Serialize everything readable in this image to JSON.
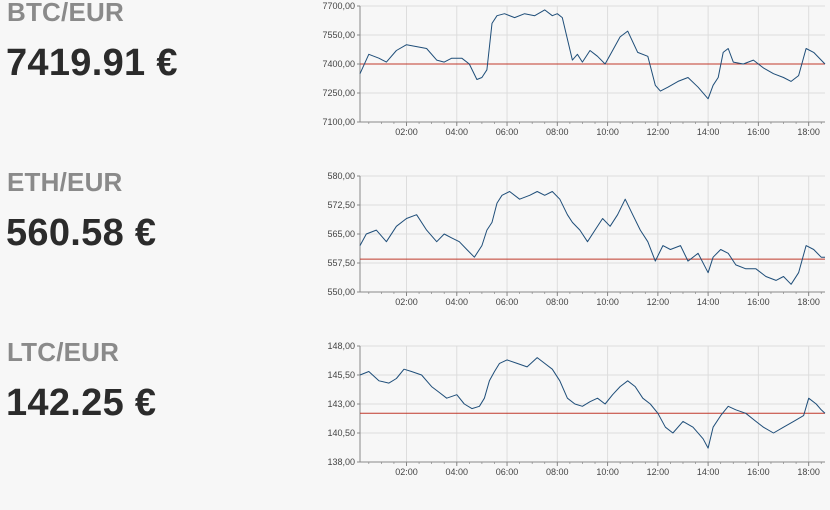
{
  "pairs": [
    {
      "pair": "BTC/EUR",
      "price": "7419.91 €"
    },
    {
      "pair": "ETH/EUR",
      "price": "560.58 €"
    },
    {
      "pair": "LTC/EUR",
      "price": "142.25 €"
    }
  ],
  "colors": {
    "line": "#1f4e79",
    "reference": "#c0392b",
    "grid": "#dddddd",
    "axis": "#888888"
  },
  "chart_data": [
    {
      "type": "line",
      "title": "BTC/EUR",
      "x_ticks": [
        "02:00",
        "04:00",
        "06:00",
        "08:00",
        "10:00",
        "12:00",
        "14:00",
        "16:00",
        "18:00"
      ],
      "y_ticks": [
        "7100,00",
        "7250,00",
        "7400,00",
        "7550,00",
        "7700,00"
      ],
      "ylim": [
        7100,
        7700
      ],
      "xlim_hours": [
        0.15,
        18.65
      ],
      "reference_line": 7400,
      "grid": true,
      "series": [
        {
          "x": [
            0.15,
            0.5,
            0.9,
            1.2,
            1.6,
            2.0,
            2.4,
            2.8,
            3.2,
            3.5,
            3.8,
            4.2,
            4.5,
            4.8,
            5.0,
            5.2,
            5.4,
            5.6,
            5.9,
            6.3,
            6.7,
            7.1,
            7.5,
            7.8,
            8.0,
            8.2,
            8.6,
            8.8,
            9.0,
            9.3,
            9.6,
            9.9,
            10.2,
            10.5,
            10.8,
            11.2,
            11.6,
            11.9,
            12.1,
            12.4,
            12.8,
            13.2,
            13.6,
            14.0,
            14.2,
            14.4,
            14.6,
            14.8,
            15.0,
            15.4,
            15.8,
            16.2,
            16.6,
            17.0,
            17.3,
            17.6,
            17.9,
            18.2,
            18.5,
            18.65
          ],
          "y": [
            7350,
            7450,
            7430,
            7410,
            7470,
            7500,
            7490,
            7480,
            7420,
            7410,
            7430,
            7430,
            7400,
            7320,
            7330,
            7370,
            7610,
            7650,
            7660,
            7640,
            7660,
            7650,
            7680,
            7650,
            7660,
            7640,
            7420,
            7450,
            7410,
            7470,
            7440,
            7400,
            7470,
            7540,
            7570,
            7460,
            7440,
            7290,
            7260,
            7280,
            7310,
            7330,
            7280,
            7220,
            7290,
            7330,
            7460,
            7480,
            7410,
            7400,
            7420,
            7380,
            7350,
            7330,
            7310,
            7340,
            7480,
            7460,
            7420,
            7400
          ]
        }
      ]
    },
    {
      "type": "line",
      "title": "ETH/EUR",
      "x_ticks": [
        "02:00",
        "04:00",
        "06:00",
        "08:00",
        "10:00",
        "12:00",
        "14:00",
        "16:00",
        "18:00"
      ],
      "y_ticks": [
        "550,00",
        "557,50",
        "565,00",
        "572,50",
        "580,00"
      ],
      "ylim": [
        550,
        580
      ],
      "xlim_hours": [
        0.15,
        18.65
      ],
      "reference_line": 558.5,
      "grid": true,
      "series": [
        {
          "x": [
            0.15,
            0.4,
            0.8,
            1.2,
            1.6,
            2.0,
            2.4,
            2.8,
            3.2,
            3.5,
            3.8,
            4.1,
            4.4,
            4.7,
            5.0,
            5.2,
            5.4,
            5.6,
            5.8,
            6.1,
            6.5,
            6.9,
            7.2,
            7.5,
            7.8,
            8.1,
            8.4,
            8.6,
            8.9,
            9.2,
            9.5,
            9.8,
            10.1,
            10.4,
            10.7,
            11.0,
            11.3,
            11.6,
            11.9,
            12.2,
            12.5,
            12.9,
            13.2,
            13.6,
            14.0,
            14.2,
            14.5,
            14.8,
            15.1,
            15.5,
            15.9,
            16.3,
            16.7,
            17.0,
            17.3,
            17.6,
            17.9,
            18.2,
            18.5,
            18.65
          ],
          "y": [
            562,
            565,
            566,
            563,
            567,
            569,
            570,
            566,
            563,
            565,
            564,
            563,
            561,
            559,
            562,
            566,
            568,
            573,
            575,
            576,
            574,
            575,
            576,
            575,
            576,
            574,
            570,
            568,
            566,
            563,
            566,
            569,
            567,
            570,
            574,
            570,
            566,
            563,
            558,
            562,
            561,
            562,
            558,
            560,
            555,
            559,
            561,
            560,
            557,
            556,
            556,
            554,
            553,
            554,
            552,
            555,
            562,
            561,
            559,
            559
          ]
        }
      ]
    },
    {
      "type": "line",
      "title": "LTC/EUR",
      "x_ticks": [
        "02:00",
        "04:00",
        "06:00",
        "08:00",
        "10:00",
        "12:00",
        "14:00",
        "16:00",
        "18:00"
      ],
      "y_ticks": [
        "138,00",
        "140,50",
        "143,00",
        "145,50",
        "148,00"
      ],
      "ylim": [
        138,
        148
      ],
      "xlim_hours": [
        0.15,
        18.65
      ],
      "reference_line": 142.2,
      "grid": true,
      "series": [
        {
          "x": [
            0.15,
            0.5,
            0.9,
            1.3,
            1.6,
            1.9,
            2.2,
            2.6,
            3.0,
            3.3,
            3.6,
            4.0,
            4.3,
            4.6,
            4.9,
            5.1,
            5.3,
            5.5,
            5.7,
            6.0,
            6.4,
            6.8,
            7.2,
            7.5,
            7.8,
            8.1,
            8.4,
            8.7,
            9.0,
            9.3,
            9.6,
            9.9,
            10.2,
            10.5,
            10.8,
            11.1,
            11.4,
            11.7,
            12.0,
            12.3,
            12.6,
            13.0,
            13.4,
            13.8,
            14.0,
            14.2,
            14.5,
            14.8,
            15.1,
            15.5,
            15.9,
            16.2,
            16.6,
            17.0,
            17.4,
            17.8,
            18.0,
            18.3,
            18.5,
            18.65
          ],
          "y": [
            145.5,
            145.8,
            145.0,
            144.8,
            145.2,
            146.0,
            145.8,
            145.5,
            144.5,
            144.0,
            143.5,
            143.8,
            143.0,
            142.6,
            142.8,
            143.5,
            145.0,
            145.8,
            146.5,
            146.8,
            146.5,
            146.2,
            147.0,
            146.5,
            146.0,
            145.0,
            143.5,
            143.0,
            142.8,
            143.2,
            143.5,
            143.0,
            143.8,
            144.5,
            145.0,
            144.5,
            143.5,
            143.0,
            142.2,
            141.0,
            140.5,
            141.5,
            141.0,
            140.0,
            139.2,
            141.0,
            142.0,
            142.8,
            142.5,
            142.2,
            141.5,
            141.0,
            140.5,
            141.0,
            141.5,
            142.0,
            143.5,
            143.0,
            142.5,
            142.2
          ]
        }
      ]
    }
  ]
}
